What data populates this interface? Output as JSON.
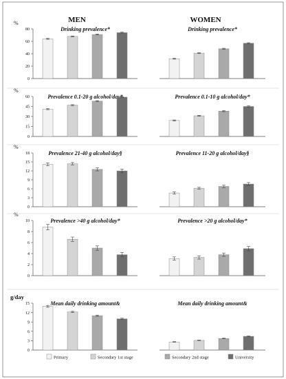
{
  "headers": {
    "men": "MEN",
    "women": "WOMEN"
  },
  "unit_pct": "%",
  "unit_amount": "g/day",
  "legend": [
    "Primary",
    "Secondary 1st stage",
    "Secondary 2nd stage",
    "University"
  ],
  "colors": {
    "series": [
      "#f2f2f2",
      "#d4d4d4",
      "#a9a9a9",
      "#6e6e6e"
    ],
    "bar_stroke": "#8a8a8a",
    "axis": "#555555",
    "frame": "#7a7a7a",
    "text": "#111111"
  },
  "chart_data": [
    {
      "type": "bar",
      "panel": "men",
      "row": 0,
      "title": "Drinking prevalence*",
      "categories": [
        "Primary",
        "Secondary 1st stage",
        "Secondary 2nd stage",
        "University"
      ],
      "values": [
        64,
        68,
        71,
        74
      ],
      "errors": [
        0.8,
        0.7,
        0.7,
        0.8
      ],
      "ylim": [
        0,
        80
      ],
      "yticks": [
        0,
        20,
        40,
        60,
        80
      ],
      "ylabel": "%"
    },
    {
      "type": "bar",
      "panel": "women",
      "row": 0,
      "title": "Drinking prevalence*",
      "categories": [
        "Primary",
        "Secondary 1st stage",
        "Secondary 2nd stage",
        "University"
      ],
      "values": [
        32,
        41,
        48,
        57
      ],
      "errors": [
        0.8,
        0.7,
        0.8,
        0.8
      ],
      "ylim": [
        0,
        80
      ],
      "yticks": [],
      "ylabel": ""
    },
    {
      "type": "bar",
      "panel": "men",
      "row": 1,
      "title": "Prevalence 0.1-20 g alcohol/day*",
      "categories": [
        "Primary",
        "Secondary 1st stage",
        "Secondary 2nd stage",
        "University"
      ],
      "values": [
        41,
        47,
        53,
        59
      ],
      "errors": [
        0.8,
        0.7,
        0.8,
        0.8
      ],
      "ylim": [
        0,
        60
      ],
      "yticks": [
        0,
        15,
        30,
        45,
        60
      ],
      "ylabel": "%"
    },
    {
      "type": "bar",
      "panel": "women",
      "row": 1,
      "title": "Prevalence 0.1-10 g alcohol/day*",
      "categories": [
        "Primary",
        "Secondary 1st stage",
        "Secondary 2nd stage",
        "University"
      ],
      "values": [
        24,
        31,
        38,
        45
      ],
      "errors": [
        0.8,
        0.7,
        0.8,
        0.8
      ],
      "ylim": [
        0,
        60
      ],
      "yticks": [],
      "ylabel": ""
    },
    {
      "type": "bar",
      "panel": "men",
      "row": 2,
      "title": "Prevalence 21-40 g alcohol/day§",
      "categories": [
        "Primary",
        "Secondary 1st stage",
        "Secondary 2nd stage",
        "University"
      ],
      "values": [
        14.2,
        14.4,
        12.5,
        12.0
      ],
      "errors": [
        0.5,
        0.4,
        0.5,
        0.6
      ],
      "ylim": [
        0,
        18
      ],
      "yticks": [
        0,
        3,
        6,
        9,
        12,
        15,
        18
      ],
      "ylabel": "%"
    },
    {
      "type": "bar",
      "panel": "women",
      "row": 2,
      "title": "Prevalence 11-20 g alcohol/day§",
      "categories": [
        "Primary",
        "Secondary 1st stage",
        "Secondary 2nd stage",
        "University"
      ],
      "values": [
        4.6,
        6.2,
        6.8,
        7.6
      ],
      "errors": [
        0.4,
        0.3,
        0.4,
        0.5
      ],
      "ylim": [
        0,
        18
      ],
      "yticks": [],
      "ylabel": ""
    },
    {
      "type": "bar",
      "panel": "men",
      "row": 3,
      "title": "Prevalence >40 g alcohol/day*",
      "categories": [
        "Primary",
        "Secondary 1st stage",
        "Secondary 2nd stage",
        "University"
      ],
      "values": [
        8.8,
        6.6,
        5.0,
        3.8
      ],
      "errors": [
        0.5,
        0.4,
        0.4,
        0.4
      ],
      "ylim": [
        0,
        10
      ],
      "yticks": [
        0,
        2,
        4,
        6,
        8,
        10
      ],
      "ylabel": "%"
    },
    {
      "type": "bar",
      "panel": "women",
      "row": 3,
      "title": "Prevalence >20 g alcohol/day*",
      "categories": [
        "Primary",
        "Secondary 1st stage",
        "Secondary 2nd stage",
        "University"
      ],
      "values": [
        3.1,
        3.3,
        3.8,
        4.9
      ],
      "errors": [
        0.3,
        0.3,
        0.3,
        0.4
      ],
      "ylim": [
        0,
        10
      ],
      "yticks": [],
      "ylabel": ""
    },
    {
      "type": "bar",
      "panel": "men",
      "row": 4,
      "title": "Mean daily drinking amount&",
      "categories": [
        "Primary",
        "Secondary 1st stage",
        "Secondary 2nd stage",
        "University"
      ],
      "values": [
        14.0,
        12.2,
        11.0,
        10.0
      ],
      "errors": [
        0.3,
        0.2,
        0.2,
        0.2
      ],
      "ylim": [
        0,
        15
      ],
      "yticks": [
        0,
        3,
        6,
        9,
        12,
        15
      ],
      "ylabel": "g/day"
    },
    {
      "type": "bar",
      "panel": "women",
      "row": 4,
      "title": "Mean daily drinking amount&",
      "categories": [
        "Primary",
        "Secondary 1st stage",
        "Secondary 2nd stage",
        "University"
      ],
      "values": [
        2.6,
        3.1,
        3.7,
        4.4
      ],
      "errors": [
        0.1,
        0.1,
        0.1,
        0.1
      ],
      "ylim": [
        0,
        15
      ],
      "yticks": [],
      "ylabel": ""
    }
  ]
}
